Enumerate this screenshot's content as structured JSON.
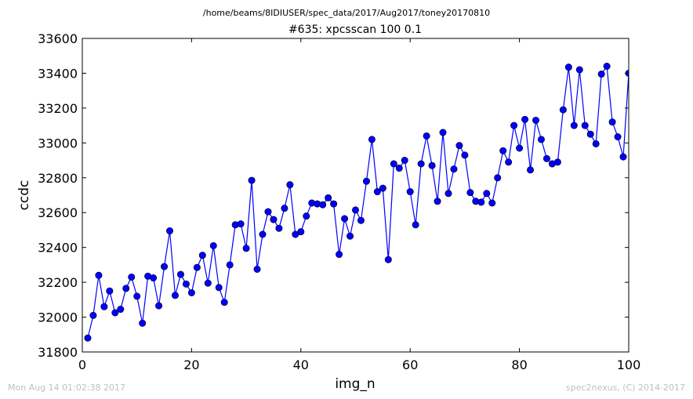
{
  "chart_data": {
    "type": "line",
    "super_title": "/home/beams/8IDIUSER/spec_data/2017/Aug2017/toney20170810",
    "title": "#635: xpcsscan 100 0.1",
    "xlabel": "img_n",
    "ylabel": "ccdc",
    "xlim": [
      0,
      100
    ],
    "ylim": [
      31800,
      33600
    ],
    "xticks": [
      0,
      20,
      40,
      60,
      80,
      100
    ],
    "yticks": [
      31800,
      32000,
      32200,
      32400,
      32600,
      32800,
      33000,
      33200,
      33400,
      33600
    ],
    "grid": false,
    "legend": "none",
    "marker": "circle",
    "color": "#0000ff",
    "series": [
      {
        "x": [
          1,
          2,
          3,
          4,
          5,
          6,
          7,
          8,
          9,
          10,
          11,
          12,
          13,
          14,
          15,
          16,
          17,
          18,
          19,
          20,
          21,
          22,
          23,
          24,
          25,
          26,
          27,
          28,
          29,
          30,
          31,
          32,
          33,
          34,
          35,
          36,
          37,
          38,
          39,
          40,
          41,
          42,
          43,
          44,
          45,
          46,
          47,
          48,
          49,
          50,
          51,
          52,
          53,
          54,
          55,
          56,
          57,
          58,
          59,
          60,
          61,
          62,
          63,
          64,
          65,
          66,
          67,
          68,
          69,
          70,
          71,
          72,
          73,
          74,
          75,
          76,
          77,
          78,
          79,
          80,
          81,
          82,
          83,
          84,
          85,
          86,
          87,
          88,
          89,
          90,
          91,
          92,
          93,
          94,
          95,
          96,
          97,
          98,
          99,
          100
        ],
        "y": [
          31880,
          32010,
          32240,
          32060,
          32150,
          32025,
          32045,
          32165,
          32230,
          32120,
          31965,
          32235,
          32225,
          32065,
          32290,
          32495,
          32125,
          32245,
          32190,
          32140,
          32285,
          32355,
          32195,
          32410,
          32170,
          32085,
          32300,
          32530,
          32535,
          32395,
          32785,
          32275,
          32475,
          32605,
          32560,
          32510,
          32625,
          32760,
          32475,
          32490,
          32580,
          32655,
          32650,
          32645,
          32685,
          32650,
          32360,
          32565,
          32465,
          32615,
          32555,
          32780,
          33020,
          32720,
          32740,
          32330,
          32880,
          32855,
          32900,
          32720,
          32530,
          32880,
          33040,
          32870,
          32665,
          33060,
          32710,
          32850,
          32985,
          32930,
          32715,
          32665,
          32660,
          32710,
          32655,
          32800,
          32955,
          32890,
          33100,
          32970,
          33135,
          32845,
          33130,
          33020,
          32910,
          32880,
          32890,
          33190,
          33435,
          33100,
          33420,
          33100,
          33050,
          32995,
          33395,
          33440,
          33120,
          33035,
          32920,
          33400
        ]
      }
    ]
  },
  "footer": {
    "timestamp": "Mon Aug 14 01:02:38 2017",
    "credit": "spec2nexus, (C) 2014-2017"
  }
}
